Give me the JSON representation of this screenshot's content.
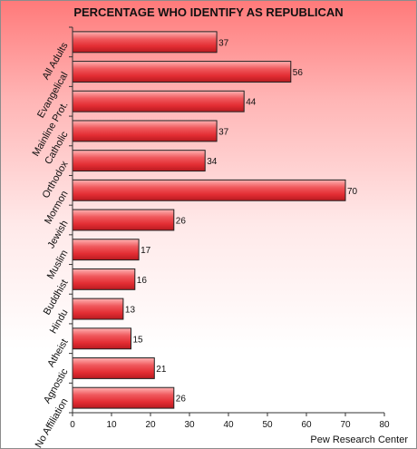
{
  "chart_data": {
    "type": "bar",
    "orientation": "horizontal",
    "title": "PERCENTAGE WHO IDENTIFY AS REPUBLICAN",
    "categories": [
      "All Adults",
      "Evangelical",
      "Mainline Prot.",
      "Catholic",
      "Orthodox",
      "Mormon",
      "Jewish",
      "Muslim",
      "Buddhist",
      "Hindu",
      "Atheist",
      "Agnostic",
      "No Affiliation"
    ],
    "values": [
      37,
      56,
      44,
      37,
      34,
      70,
      26,
      17,
      16,
      13,
      15,
      21,
      26
    ],
    "xlim": [
      0,
      80
    ],
    "xticks": [
      0,
      10,
      20,
      30,
      40,
      50,
      60,
      70,
      80
    ],
    "grid": false,
    "bar_color": "#e8383d",
    "source": "Pew Research Center"
  }
}
